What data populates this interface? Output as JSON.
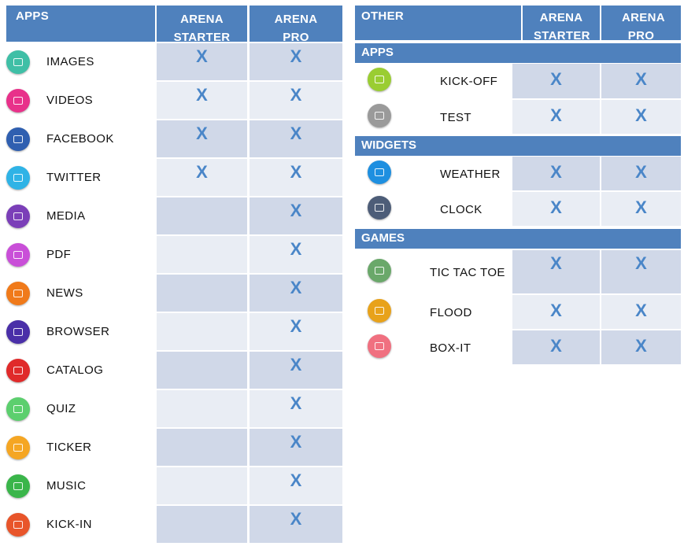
{
  "left_table": {
    "header": {
      "col1": "APPS",
      "col2": "ARENA STARTER",
      "col3": "ARENA PRO"
    },
    "rows": [
      {
        "label": "IMAGES",
        "icon": "image-icon",
        "color": "#3fbfa6",
        "starter": "X",
        "pro": "X"
      },
      {
        "label": "VIDEOS",
        "icon": "video-icon",
        "color": "#e8318a",
        "starter": "X",
        "pro": "X"
      },
      {
        "label": "FACEBOOK",
        "icon": "facebook-icon",
        "color": "#2f5fb0",
        "starter": "X",
        "pro": "X"
      },
      {
        "label": "TWITTER",
        "icon": "twitter-icon",
        "color": "#2fb3e6",
        "starter": "X",
        "pro": "X"
      },
      {
        "label": "MEDIA",
        "icon": "media-icon",
        "color": "#7b3fb8",
        "starter": "",
        "pro": "X"
      },
      {
        "label": "PDF",
        "icon": "pdf-icon",
        "color": "#c94fd8",
        "starter": "",
        "pro": "X"
      },
      {
        "label": "NEWS",
        "icon": "news-icon",
        "color": "#f07a1a",
        "starter": "",
        "pro": "X"
      },
      {
        "label": "BROWSER",
        "icon": "globe-icon",
        "color": "#4a2fa8",
        "starter": "",
        "pro": "X"
      },
      {
        "label": "CATALOG",
        "icon": "catalog-icon",
        "color": "#e02a2a",
        "starter": "",
        "pro": "X"
      },
      {
        "label": "QUIZ",
        "icon": "quiz-icon",
        "color": "#5ccf6e",
        "starter": "",
        "pro": "X"
      },
      {
        "label": "TICKER",
        "icon": "ticker-icon",
        "color": "#f5a623",
        "starter": "",
        "pro": "X"
      },
      {
        "label": "MUSIC",
        "icon": "music-icon",
        "color": "#3ab54a",
        "starter": "",
        "pro": "X"
      },
      {
        "label": "KICK-IN",
        "icon": "kickin-icon",
        "color": "#e8552a",
        "starter": "",
        "pro": "X"
      }
    ]
  },
  "right_table": {
    "header": {
      "col1": "OTHER",
      "col2": "ARENA STARTER",
      "col3": "ARENA PRO"
    },
    "sections": [
      {
        "title": "APPS",
        "rows": [
          {
            "label": "KICK-OFF",
            "icon": "kickoff-icon",
            "color": "#9acd32",
            "starter": "X",
            "pro": "X"
          },
          {
            "label": "TEST",
            "icon": "test-icon",
            "color": "#9a9a9a",
            "starter": "X",
            "pro": "X"
          }
        ]
      },
      {
        "title": "WIDGETS",
        "rows": [
          {
            "label": "WEATHER",
            "icon": "weather-icon",
            "color": "#1e8fe0",
            "starter": "X",
            "pro": "X"
          },
          {
            "label": "CLOCK",
            "icon": "clock-icon",
            "color": "#4d5d78",
            "starter": "X",
            "pro": "X"
          }
        ]
      },
      {
        "title": "GAMES",
        "rows": [
          {
            "label": "TIC TAC TOE",
            "icon": "tictactoe-icon",
            "color": "#6aa86a",
            "starter": "X",
            "pro": "X"
          },
          {
            "label": "FLOOD",
            "icon": "flood-icon",
            "color": "#e8a21a",
            "starter": "X",
            "pro": "X"
          },
          {
            "label": "BOX-IT",
            "icon": "boxit-icon",
            "color": "#f07080",
            "starter": "X",
            "pro": "X"
          }
        ]
      }
    ]
  }
}
